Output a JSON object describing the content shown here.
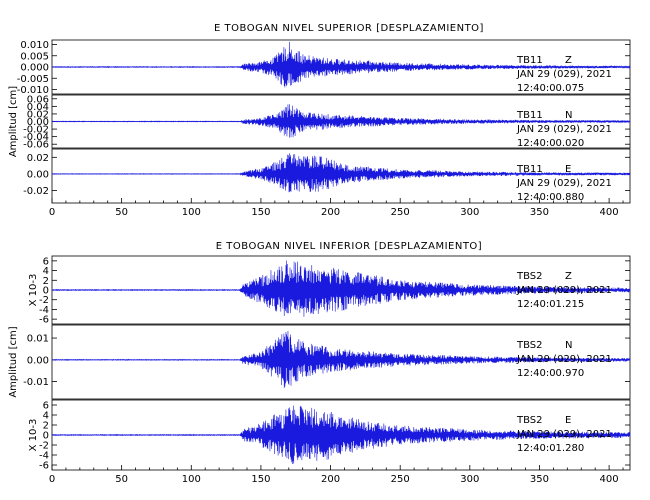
{
  "chart_data": [
    {
      "type": "line",
      "title": "E TOBOGAN NIVEL SUPERIOR [DESPLAZAMIENTO]",
      "ylabel": "Amplitud [cm]",
      "xlim": [
        0,
        415
      ],
      "xticks": [
        "0",
        "50",
        "100",
        "150",
        "200",
        "250",
        "300",
        "350",
        "400"
      ],
      "line_color": "#1a1adf",
      "panels": [
        {
          "station": "TB11",
          "component": "Z",
          "date": "JAN 29 (029), 2021",
          "time": "12:40:00.075",
          "ylim": [
            -0.012,
            0.012
          ],
          "yticks": [
            "0.010",
            "0.005",
            "0.000",
            "-0.005",
            "-0.010"
          ],
          "envelope": [
            {
              "t": 0,
              "a": 0.0002
            },
            {
              "t": 135,
              "a": 0.0002
            },
            {
              "t": 137,
              "a": 0.0015
            },
            {
              "t": 150,
              "a": 0.0028
            },
            {
              "t": 160,
              "a": 0.005
            },
            {
              "t": 170,
              "a": 0.012
            },
            {
              "t": 180,
              "a": 0.006
            },
            {
              "t": 200,
              "a": 0.004
            },
            {
              "t": 250,
              "a": 0.002
            },
            {
              "t": 300,
              "a": 0.0012
            },
            {
              "t": 350,
              "a": 0.0008
            },
            {
              "t": 415,
              "a": 0.0005
            }
          ]
        },
        {
          "station": "TB11",
          "component": "N",
          "date": "JAN 29 (029), 2021",
          "time": "12:40:00.020",
          "ylim": [
            -0.07,
            0.07
          ],
          "yticks": [
            "0.06",
            "0.04",
            "0.02",
            "0.00",
            "-0.02",
            "-0.04",
            "-0.06"
          ],
          "envelope": [
            {
              "t": 0,
              "a": 0.001
            },
            {
              "t": 135,
              "a": 0.001
            },
            {
              "t": 137,
              "a": 0.006
            },
            {
              "t": 150,
              "a": 0.012
            },
            {
              "t": 160,
              "a": 0.02
            },
            {
              "t": 170,
              "a": 0.05
            },
            {
              "t": 180,
              "a": 0.03
            },
            {
              "t": 200,
              "a": 0.02
            },
            {
              "t": 250,
              "a": 0.01
            },
            {
              "t": 300,
              "a": 0.006
            },
            {
              "t": 350,
              "a": 0.004
            },
            {
              "t": 415,
              "a": 0.003
            }
          ]
        },
        {
          "station": "TB11",
          "component": "E",
          "date": "JAN 29 (029), 2021",
          "time": "12:40:00.880",
          "ylim": [
            -0.035,
            0.03
          ],
          "yticks": [
            "0.02",
            "0.00",
            "-0.02"
          ],
          "envelope": [
            {
              "t": 0,
              "a": 0.0004
            },
            {
              "t": 135,
              "a": 0.0004
            },
            {
              "t": 137,
              "a": 0.003
            },
            {
              "t": 150,
              "a": 0.008
            },
            {
              "t": 160,
              "a": 0.015
            },
            {
              "t": 170,
              "a": 0.028
            },
            {
              "t": 180,
              "a": 0.022
            },
            {
              "t": 190,
              "a": 0.025
            },
            {
              "t": 210,
              "a": 0.012
            },
            {
              "t": 250,
              "a": 0.006
            },
            {
              "t": 300,
              "a": 0.003
            },
            {
              "t": 350,
              "a": 0.002
            },
            {
              "t": 415,
              "a": 0.0015
            }
          ]
        }
      ]
    },
    {
      "type": "line",
      "title": "E TOBOGAN NIVEL INFERIOR [DESPLAZAMIENTO]",
      "ylabel": "Amplitud [cm]",
      "xlim": [
        0,
        415
      ],
      "xticks": [
        "0",
        "50",
        "100",
        "150",
        "200",
        "250",
        "300",
        "350",
        "400"
      ],
      "line_color": "#1a1adf",
      "panels": [
        {
          "station": "TBS2",
          "component": "Z",
          "date": "JAN 29 (029), 2021",
          "time": "12:40:01.215",
          "scale_label": "X 10-3",
          "ylim": [
            -7,
            7
          ],
          "yticks": [
            "6",
            "4",
            "2",
            "0",
            "-2",
            "-4",
            "-6"
          ],
          "envelope": [
            {
              "t": 0,
              "a": 0.1
            },
            {
              "t": 135,
              "a": 0.1
            },
            {
              "t": 137,
              "a": 1.5
            },
            {
              "t": 150,
              "a": 3
            },
            {
              "t": 160,
              "a": 5
            },
            {
              "t": 170,
              "a": 6.8
            },
            {
              "t": 185,
              "a": 5.5
            },
            {
              "t": 200,
              "a": 5
            },
            {
              "t": 250,
              "a": 2.2
            },
            {
              "t": 300,
              "a": 1.2
            },
            {
              "t": 350,
              "a": 0.8
            },
            {
              "t": 415,
              "a": 0.5
            }
          ]
        },
        {
          "station": "TBS2",
          "component": "N",
          "date": "JAN 29 (029), 2021",
          "time": "12:40:00.970",
          "ylim": [
            -0.018,
            0.016
          ],
          "yticks": [
            "0.01",
            "0.00",
            "-0.01"
          ],
          "envelope": [
            {
              "t": 0,
              "a": 0.0002
            },
            {
              "t": 135,
              "a": 0.0002
            },
            {
              "t": 137,
              "a": 0.002
            },
            {
              "t": 150,
              "a": 0.004
            },
            {
              "t": 160,
              "a": 0.01
            },
            {
              "t": 168,
              "a": 0.015
            },
            {
              "t": 180,
              "a": 0.009
            },
            {
              "t": 200,
              "a": 0.006
            },
            {
              "t": 250,
              "a": 0.003
            },
            {
              "t": 300,
              "a": 0.0018
            },
            {
              "t": 350,
              "a": 0.0012
            },
            {
              "t": 415,
              "a": 0.0008
            }
          ]
        },
        {
          "station": "TBS2",
          "component": "E",
          "date": "JAN 29 (029), 2021",
          "time": "12:40:01.280",
          "scale_label": "X 10-3",
          "ylim": [
            -7,
            7
          ],
          "yticks": [
            "6",
            "4",
            "2",
            "0",
            "-2",
            "-4",
            "-6"
          ],
          "envelope": [
            {
              "t": 0,
              "a": 0.1
            },
            {
              "t": 135,
              "a": 0.1
            },
            {
              "t": 137,
              "a": 1.2
            },
            {
              "t": 150,
              "a": 2.5
            },
            {
              "t": 160,
              "a": 4.5
            },
            {
              "t": 175,
              "a": 6.5
            },
            {
              "t": 190,
              "a": 6
            },
            {
              "t": 210,
              "a": 4
            },
            {
              "t": 250,
              "a": 2
            },
            {
              "t": 300,
              "a": 1.2
            },
            {
              "t": 350,
              "a": 0.8
            },
            {
              "t": 415,
              "a": 0.6
            }
          ]
        }
      ]
    }
  ]
}
